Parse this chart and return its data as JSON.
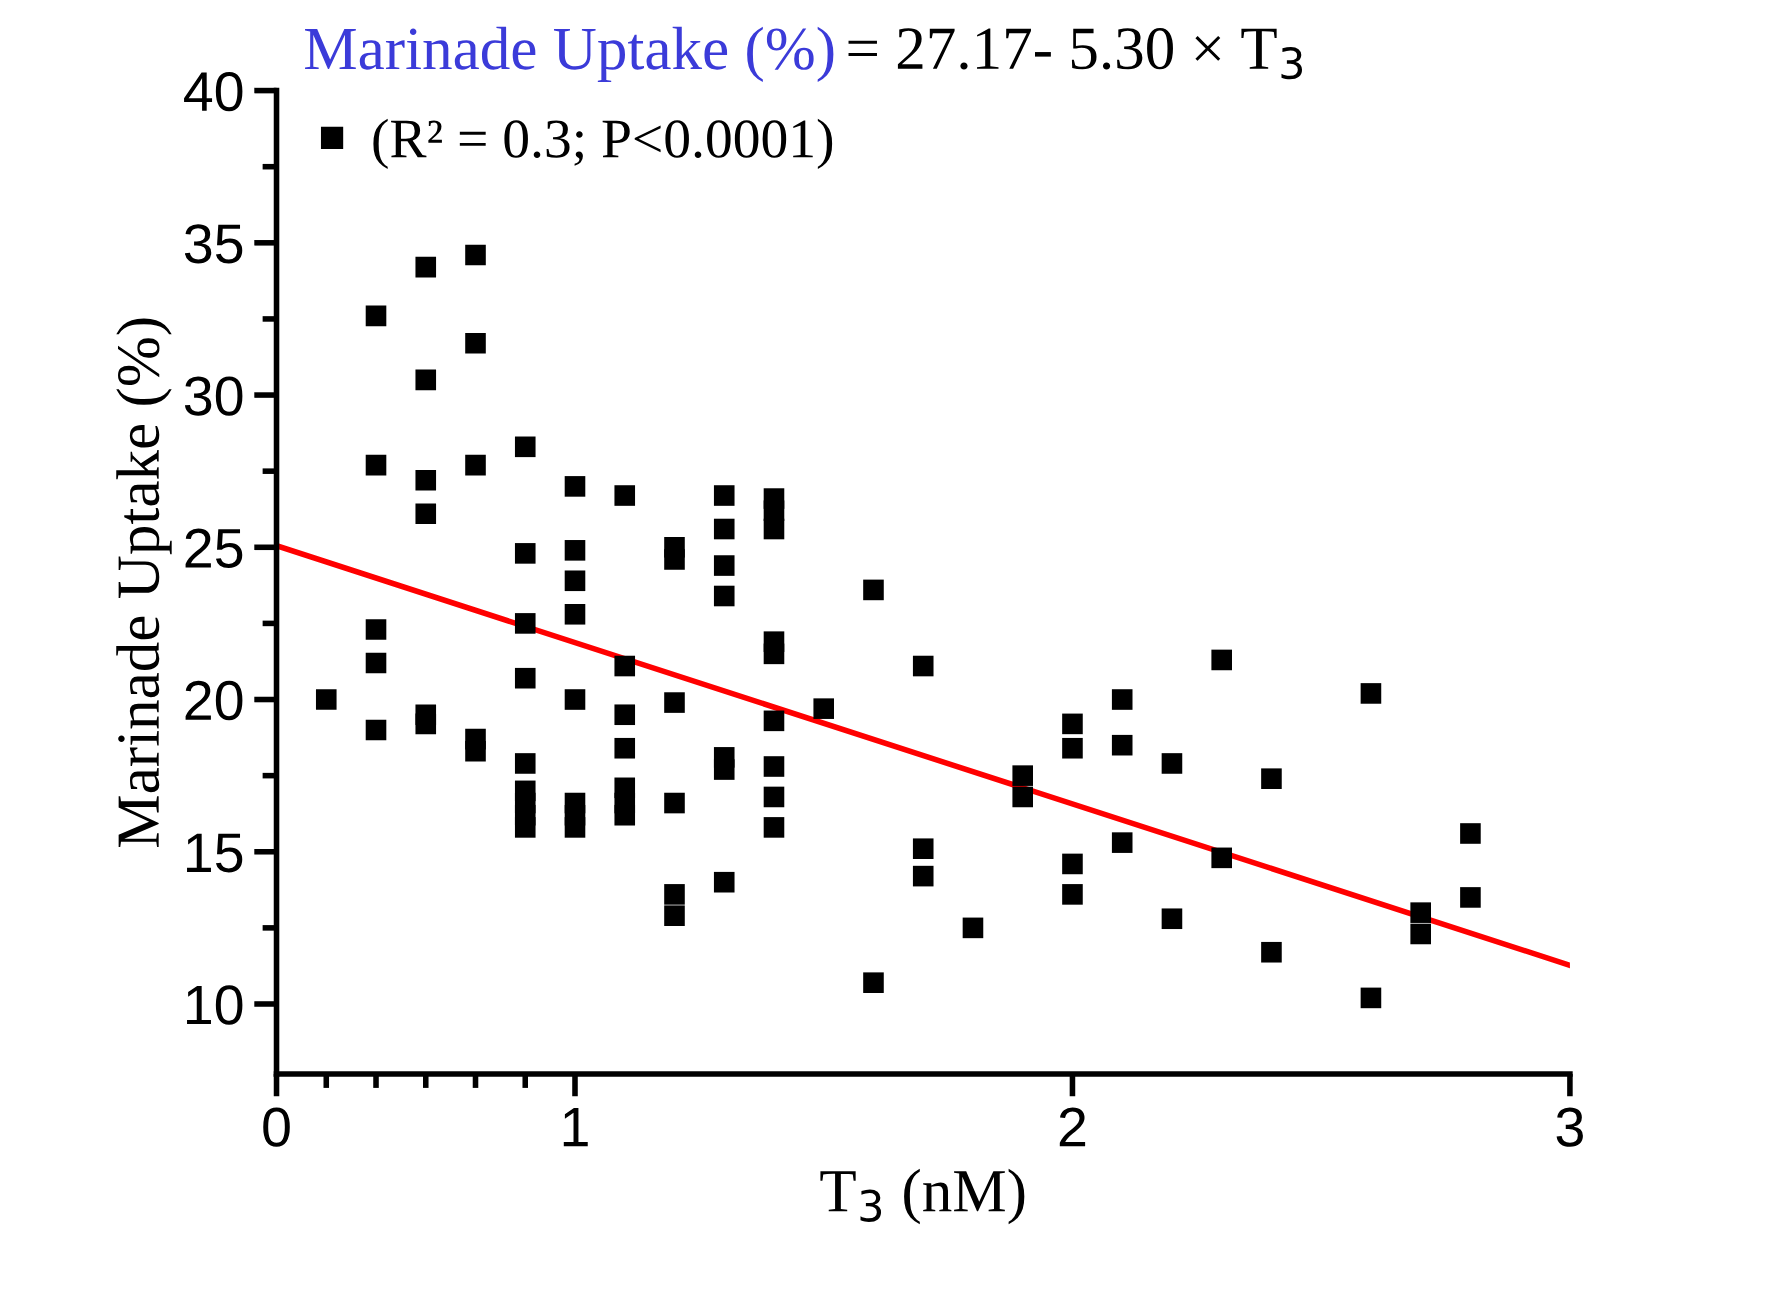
{
  "chart_data": {
    "type": "scatter",
    "annotations": [
      "Marinade Uptake (%)",
      "= 27.17- 5.30 × T$_{3}$"
    ],
    "xlabel": "T$_{3}$ (nM)",
    "ylabel": "Marinade Uptake (%)",
    "xlim": [
      0.4,
      3
    ],
    "ylim": [
      7.7,
      40
    ],
    "xticks": [
      {
        "value": 0.4,
        "label": "0"
      },
      {
        "value": 0.5,
        "label": null
      },
      {
        "value": 0.6,
        "label": null
      },
      {
        "value": 0.7,
        "label": null
      },
      {
        "value": 0.8,
        "label": null
      },
      {
        "value": 0.9,
        "label": null
      },
      1,
      2,
      3
    ],
    "yticks": [
      10,
      {
        "value": 12.5,
        "label": null
      },
      15,
      {
        "value": 17.5,
        "label": null
      },
      20,
      {
        "value": 22.5,
        "label": null
      },
      25,
      {
        "value": 27.5,
        "label": null
      },
      30,
      {
        "value": 32.5,
        "label": null
      },
      35,
      {
        "value": 37.5,
        "label": null
      },
      40
    ],
    "grid": false,
    "legend": "top left",
    "marker": "square",
    "series": [
      {
        "name": "(R² = 0.3; P<0.0001)",
        "color": "#000000",
        "x": [
          0.5,
          0.6,
          0.6,
          0.6,
          0.6,
          0.6,
          0.7,
          0.7,
          0.7,
          0.7,
          0.7,
          0.7,
          0.8,
          0.8,
          0.8,
          0.8,
          0.8,
          0.9,
          0.9,
          0.9,
          0.9,
          0.9,
          0.9,
          0.9,
          0.9,
          0.9,
          1.0,
          1.0,
          1.0,
          1.0,
          1.0,
          1.0,
          1.0,
          1.0,
          1.1,
          1.1,
          1.1,
          1.1,
          1.1,
          1.1,
          1.1,
          1.2,
          1.2,
          1.2,
          1.2,
          1.2,
          1.2,
          1.3,
          1.3,
          1.3,
          1.3,
          1.3,
          1.3,
          1.3,
          1.4,
          1.4,
          1.4,
          1.4,
          1.4,
          1.4,
          1.4,
          1.4,
          1.4,
          1.5,
          1.6,
          1.6,
          1.7,
          1.7,
          1.7,
          1.8,
          1.9,
          1.9,
          2.0,
          2.0,
          2.0,
          2.0,
          2.1,
          2.1,
          2.1,
          2.2,
          2.2,
          2.3,
          2.3,
          2.4,
          2.4,
          2.6,
          2.6,
          2.7,
          2.7,
          2.8,
          2.8
        ],
        "values": [
          20.0,
          32.6,
          27.7,
          22.3,
          21.2,
          19.0,
          34.2,
          30.5,
          27.2,
          26.1,
          19.5,
          19.2,
          34.6,
          31.7,
          27.7,
          18.7,
          18.3,
          28.3,
          24.8,
          22.5,
          20.7,
          17.9,
          17.0,
          16.6,
          16.2,
          15.8,
          27.0,
          24.9,
          23.9,
          22.8,
          20.0,
          16.6,
          16.2,
          15.8,
          26.7,
          21.1,
          19.5,
          18.4,
          17.1,
          16.6,
          16.2,
          25.0,
          24.6,
          19.9,
          16.6,
          13.6,
          12.9,
          26.7,
          25.6,
          24.4,
          23.4,
          18.1,
          17.7,
          14.0,
          26.6,
          26.2,
          25.6,
          21.9,
          21.5,
          19.3,
          17.8,
          16.8,
          15.8,
          19.7,
          23.6,
          10.7,
          21.1,
          15.1,
          14.2,
          12.5,
          17.5,
          16.8,
          19.2,
          18.4,
          14.6,
          13.6,
          20.0,
          18.5,
          15.3,
          17.9,
          12.8,
          21.3,
          14.8,
          17.4,
          11.7,
          20.2,
          10.2,
          13.0,
          12.3,
          15.6,
          13.5
        ]
      },
      {
        "type": "line",
        "color": "#ff0000",
        "marker": "none",
        "x": [
          0.4,
          3
        ],
        "values": [
          25.05,
          11.27
        ]
      }
    ]
  }
}
